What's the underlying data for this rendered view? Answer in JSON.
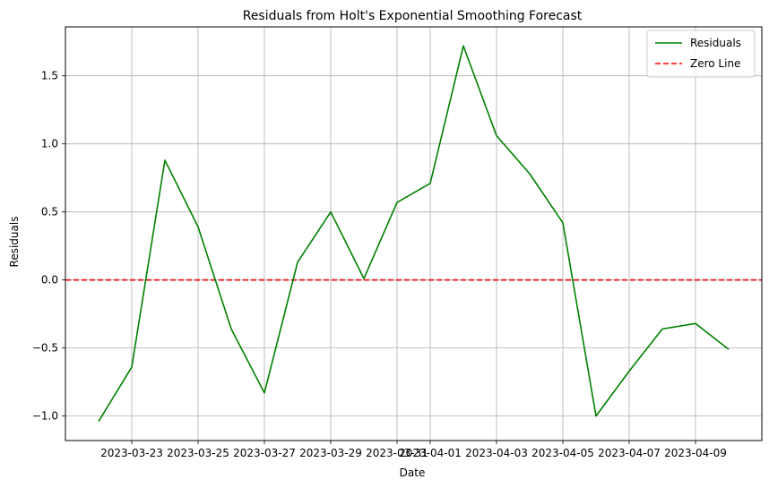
{
  "chart_data": {
    "type": "line",
    "title": "Residuals from Holt's Exponential Smoothing Forecast",
    "xlabel": "Date",
    "ylabel": "Residuals",
    "x": [
      "2023-03-22",
      "2023-03-23",
      "2023-03-24",
      "2023-03-25",
      "2023-03-26",
      "2023-03-27",
      "2023-03-28",
      "2023-03-29",
      "2023-03-30",
      "2023-03-31",
      "2023-04-01",
      "2023-04-02",
      "2023-04-03",
      "2023-04-04",
      "2023-04-05",
      "2023-04-06",
      "2023-04-07",
      "2023-04-08",
      "2023-04-09",
      "2023-04-10"
    ],
    "series": [
      {
        "name": "Residuals",
        "color": "#008000",
        "style": "solid",
        "values": [
          -1.04,
          -0.64,
          0.88,
          0.39,
          -0.36,
          -0.83,
          0.13,
          0.5,
          0.01,
          0.57,
          0.71,
          1.72,
          1.06,
          0.78,
          0.42,
          -1.0,
          -0.67,
          -0.36,
          -0.32,
          -0.51
        ]
      }
    ],
    "reference_lines": [
      {
        "name": "Zero Line",
        "y": 0.0,
        "color": "#ff0000",
        "style": "dashed"
      }
    ],
    "x_ticks": [
      "2023-03-23",
      "2023-03-25",
      "2023-03-27",
      "2023-03-29",
      "2023-03-31",
      "2023-04-01",
      "2023-04-03",
      "2023-04-05",
      "2023-04-07",
      "2023-04-09"
    ],
    "y_ticks": [
      "−1.0",
      "−0.5",
      "0.0",
      "0.5",
      "1.0",
      "1.5"
    ],
    "y_tick_values": [
      -1.0,
      -0.5,
      0.0,
      0.5,
      1.0,
      1.5
    ],
    "xlim": [
      "2023-03-21.0",
      "2023-04-11.0"
    ],
    "ylim": [
      -1.18,
      1.86
    ],
    "grid": true,
    "legend_position": "top-right"
  }
}
